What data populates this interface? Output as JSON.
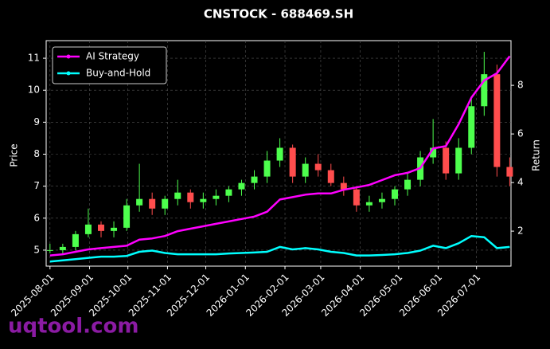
{
  "chart_data": {
    "type": "candlestick",
    "title": "CNSTOCK - 688469.SH",
    "ylabel": "Price",
    "y2label": "Return",
    "watermark": "uqtool.com",
    "x": [
      "2025-08-01",
      "2025-08-11",
      "2025-08-21",
      "2025-08-31",
      "2025-09-10",
      "2025-09-20",
      "2025-09-30",
      "2025-10-10",
      "2025-10-20",
      "2025-10-30",
      "2025-11-09",
      "2025-11-19",
      "2025-11-29",
      "2025-12-09",
      "2025-12-19",
      "2025-12-29",
      "2026-01-08",
      "2026-01-18",
      "2026-01-28",
      "2026-02-07",
      "2026-02-17",
      "2026-02-27",
      "2026-03-09",
      "2026-03-19",
      "2026-03-29",
      "2026-04-08",
      "2026-04-18",
      "2026-04-28",
      "2026-05-08",
      "2026-05-18",
      "2026-05-28",
      "2026-06-07",
      "2026-06-17",
      "2026-06-27",
      "2026-07-07",
      "2026-07-17",
      "2026-07-27"
    ],
    "open": [
      5.0,
      5.0,
      5.1,
      5.5,
      5.8,
      5.6,
      5.7,
      6.4,
      6.6,
      6.3,
      6.6,
      6.8,
      6.5,
      6.6,
      6.7,
      6.9,
      7.1,
      7.3,
      7.8,
      8.2,
      7.3,
      7.7,
      7.5,
      7.1,
      6.9,
      6.4,
      6.5,
      6.6,
      6.9,
      7.2,
      7.9,
      8.2,
      7.4,
      8.2,
      9.5,
      10.5,
      7.6
    ],
    "high": [
      5.2,
      5.2,
      5.6,
      6.3,
      5.9,
      5.9,
      6.6,
      7.7,
      6.8,
      6.7,
      7.2,
      6.9,
      6.8,
      6.9,
      7.0,
      7.2,
      7.5,
      8.1,
      8.5,
      8.3,
      7.9,
      8.0,
      7.7,
      7.3,
      7.0,
      6.7,
      6.8,
      7.0,
      7.4,
      8.1,
      9.1,
      8.4,
      8.5,
      9.8,
      11.2,
      10.8,
      7.9
    ],
    "low": [
      4.9,
      4.9,
      5.0,
      5.4,
      5.4,
      5.4,
      5.6,
      6.2,
      6.1,
      6.1,
      6.4,
      6.3,
      6.3,
      6.4,
      6.5,
      6.7,
      6.9,
      7.1,
      7.6,
      7.1,
      7.1,
      7.3,
      7.0,
      6.7,
      6.2,
      6.2,
      6.3,
      6.4,
      6.7,
      7.0,
      7.7,
      7.2,
      7.2,
      8.0,
      9.2,
      7.3,
      7.0
    ],
    "close": [
      5.0,
      5.1,
      5.5,
      5.8,
      5.6,
      5.7,
      6.4,
      6.6,
      6.3,
      6.6,
      6.8,
      6.5,
      6.6,
      6.7,
      6.9,
      7.1,
      7.3,
      7.8,
      8.2,
      7.3,
      7.7,
      7.5,
      7.1,
      6.9,
      6.4,
      6.5,
      6.6,
      6.9,
      7.2,
      7.9,
      8.2,
      7.4,
      8.2,
      9.5,
      10.5,
      7.6,
      7.3
    ],
    "up_color": "#4dff4d",
    "down_color": "#ff4d4d",
    "series": [
      {
        "name": "AI Strategy",
        "color": "#ff00ff",
        "axis": "y2",
        "values": [
          1.0,
          1.05,
          1.15,
          1.25,
          1.3,
          1.35,
          1.4,
          1.65,
          1.7,
          1.8,
          2.0,
          2.1,
          2.2,
          2.3,
          2.4,
          2.5,
          2.6,
          2.8,
          3.3,
          3.4,
          3.5,
          3.55,
          3.55,
          3.7,
          3.8,
          3.9,
          4.1,
          4.3,
          4.4,
          4.6,
          5.4,
          5.5,
          6.4,
          7.5,
          8.2,
          8.5,
          9.2
        ]
      },
      {
        "name": "Buy-and-Hold",
        "color": "#00ffff",
        "axis": "y2",
        "values": [
          0.75,
          0.8,
          0.85,
          0.9,
          0.95,
          0.95,
          0.98,
          1.15,
          1.2,
          1.1,
          1.05,
          1.05,
          1.05,
          1.05,
          1.08,
          1.1,
          1.12,
          1.15,
          1.35,
          1.25,
          1.3,
          1.25,
          1.15,
          1.1,
          1.0,
          1.0,
          1.02,
          1.05,
          1.1,
          1.2,
          1.4,
          1.3,
          1.5,
          1.8,
          1.75,
          1.3,
          1.35
        ]
      }
    ],
    "xlim": [
      "2025-07-29",
      "2026-07-28"
    ],
    "xticks": [
      "2025-08-01",
      "2025-09-01",
      "2025-10-01",
      "2025-11-01",
      "2025-12-01",
      "2026-01-01",
      "2026-02-01",
      "2026-03-01",
      "2026-04-01",
      "2026-05-01",
      "2026-06-01",
      "2026-07-01"
    ],
    "ylim": [
      4.5,
      11.55
    ],
    "yticks": [
      5,
      6,
      7,
      8,
      9,
      10,
      11
    ],
    "y2lim": [
      0.56,
      9.84
    ],
    "y2ticks": [
      2,
      4,
      6,
      8
    ],
    "grid": true,
    "legend": "upper left"
  }
}
